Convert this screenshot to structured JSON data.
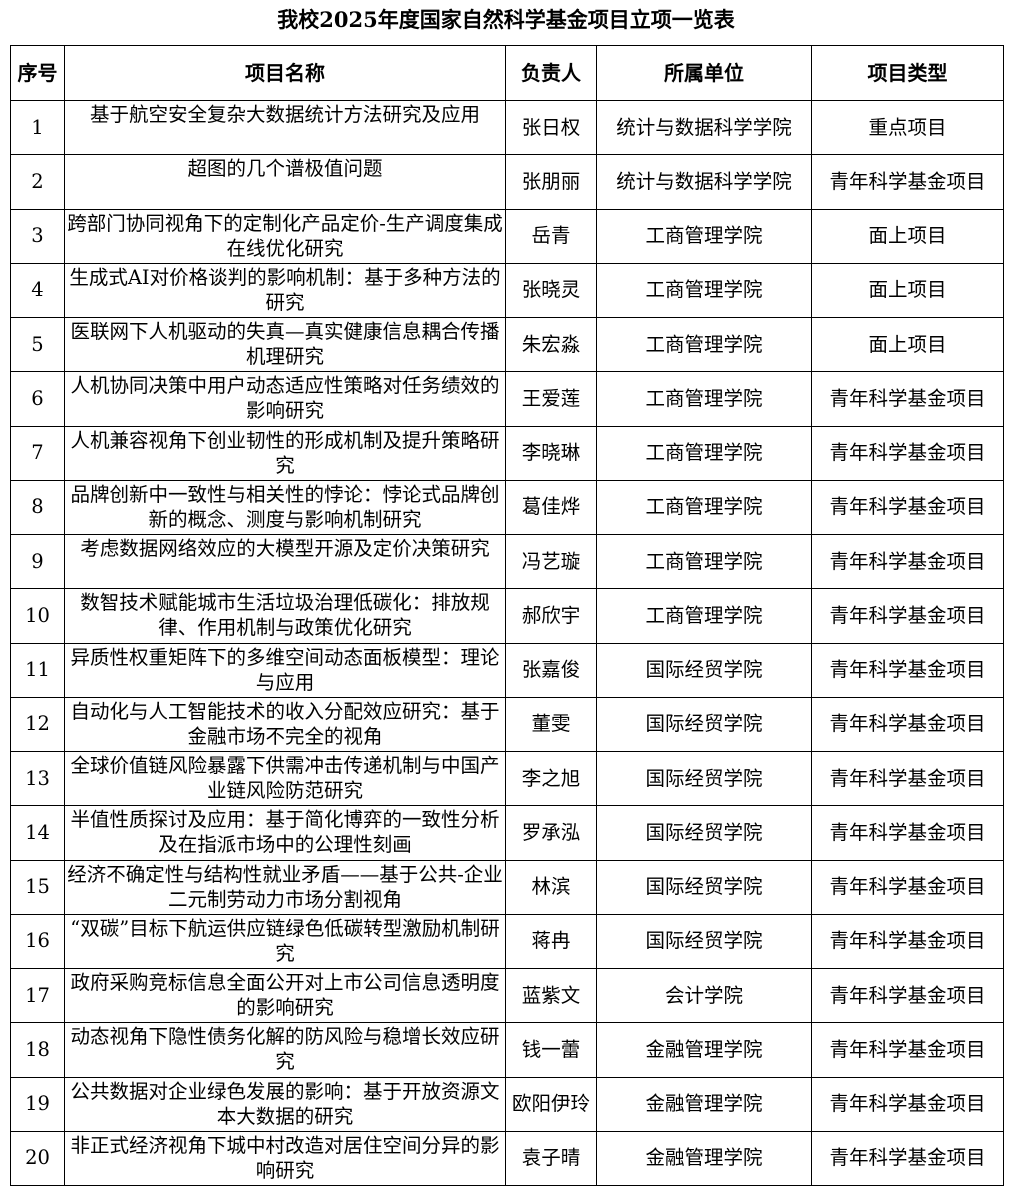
{
  "title": "我校2025年度国家自然科学基金项目立项一览表",
  "headers": [
    "序号",
    "项目名称",
    "负责人",
    "所属单位",
    "项目类型"
  ],
  "rows": [
    {
      "no": "1",
      "name": "基于航空安全复杂大数据统计方法研究及应用",
      "leader": "张日权",
      "unit": "统计与数据科学学院",
      "type": "重点项目"
    },
    {
      "no": "2",
      "name": "超图的几个谱极值问题",
      "leader": "张朋丽",
      "unit": "统计与数据科学学院",
      "type": "青年科学基金项目"
    },
    {
      "no": "3",
      "name": "跨部门协同视角下的定制化产品定价-生产调度集成在线优化研究",
      "leader": "岳青",
      "unit": "工商管理学院",
      "type": "面上项目"
    },
    {
      "no": "4",
      "name": "生成式AI对价格谈判的影响机制：基于多种方法的研究",
      "leader": "张晓灵",
      "unit": "工商管理学院",
      "type": "面上项目"
    },
    {
      "no": "5",
      "name": "医联网下人机驱动的失真—真实健康信息耦合传播机理研究",
      "leader": "朱宏淼",
      "unit": "工商管理学院",
      "type": "面上项目"
    },
    {
      "no": "6",
      "name": "人机协同决策中用户动态适应性策略对任务绩效的影响研究",
      "leader": "王爱莲",
      "unit": "工商管理学院",
      "type": "青年科学基金项目"
    },
    {
      "no": "7",
      "name": "人机兼容视角下创业韧性的形成机制及提升策略研究",
      "leader": "李晓琳",
      "unit": "工商管理学院",
      "type": "青年科学基金项目"
    },
    {
      "no": "8",
      "name": "品牌创新中一致性与相关性的悖论：悖论式品牌创新的概念、测度与影响机制研究",
      "leader": "葛佳烨",
      "unit": "工商管理学院",
      "type": "青年科学基金项目"
    },
    {
      "no": "9",
      "name": "考虑数据网络效应的大模型开源及定价决策研究",
      "leader": "冯艺璇",
      "unit": "工商管理学院",
      "type": "青年科学基金项目"
    },
    {
      "no": "10",
      "name": "数智技术赋能城市生活垃圾治理低碳化：排放规律、作用机制与政策优化研究",
      "leader": "郝欣宇",
      "unit": "工商管理学院",
      "type": "青年科学基金项目"
    },
    {
      "no": "11",
      "name": "异质性权重矩阵下的多维空间动态面板模型：理论与应用",
      "leader": "张嘉俊",
      "unit": "国际经贸学院",
      "type": "青年科学基金项目"
    },
    {
      "no": "12",
      "name": "自动化与人工智能技术的收入分配效应研究：基于金融市场不完全的视角",
      "leader": "董雯",
      "unit": "国际经贸学院",
      "type": "青年科学基金项目"
    },
    {
      "no": "13",
      "name": "全球价值链风险暴露下供需冲击传递机制与中国产业链风险防范研究",
      "leader": "李之旭",
      "unit": "国际经贸学院",
      "type": "青年科学基金项目"
    },
    {
      "no": "14",
      "name": "半值性质探讨及应用：基于简化博弈的一致性分析及在指派市场中的公理性刻画",
      "leader": "罗承泓",
      "unit": "国际经贸学院",
      "type": "青年科学基金项目"
    },
    {
      "no": "15",
      "name": "经济不确定性与结构性就业矛盾——基于公共-企业二元制劳动力市场分割视角",
      "leader": "林滨",
      "unit": "国际经贸学院",
      "type": "青年科学基金项目"
    },
    {
      "no": "16",
      "name": "“双碳”目标下航运供应链绿色低碳转型激励机制研究",
      "leader": "蒋冉",
      "unit": "国际经贸学院",
      "type": "青年科学基金项目"
    },
    {
      "no": "17",
      "name": "政府采购竞标信息全面公开对上市公司信息透明度的影响研究",
      "leader": "蓝紫文",
      "unit": "会计学院",
      "type": "青年科学基金项目"
    },
    {
      "no": "18",
      "name": "动态视角下隐性债务化解的防风险与稳增长效应研究",
      "leader": "钱一蕾",
      "unit": "金融管理学院",
      "type": "青年科学基金项目"
    },
    {
      "no": "19",
      "name": "公共数据对企业绿色发展的影响：基于开放资源文本大数据的研究",
      "leader": "欧阳伊玲",
      "unit": "金融管理学院",
      "type": "青年科学基金项目"
    },
    {
      "no": "20",
      "name": "非正式经济视角下城中村改造对居住空间分异的影响研究",
      "leader": "袁子晴",
      "unit": "金融管理学院",
      "type": "青年科学基金项目"
    }
  ]
}
